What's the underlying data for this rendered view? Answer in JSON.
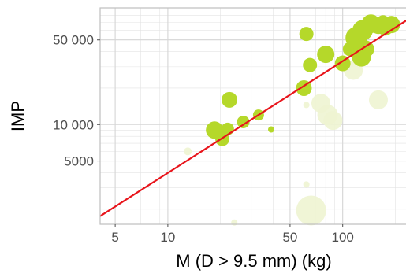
{
  "chart_data": {
    "type": "scatter",
    "title": "",
    "xlabel": "M (D > 9.5 mm) (kg)",
    "ylabel": "IMP",
    "x_scale": "log10",
    "y_scale": "log10",
    "xlim": [
      4.1,
      235
    ],
    "ylim": [
      1500,
      92000
    ],
    "x_ticks": [
      {
        "value": 5,
        "label": "5"
      },
      {
        "value": 10,
        "label": "10"
      },
      {
        "value": 50,
        "label": "50"
      },
      {
        "value": 100,
        "label": "100"
      }
    ],
    "y_ticks": [
      {
        "value": 5000,
        "label": "5000"
      },
      {
        "value": 10000,
        "label": "10 000"
      },
      {
        "value": 50000,
        "label": "50 000"
      }
    ],
    "grid": true,
    "colors": {
      "point_strong": "#b5d82a",
      "point_faint": "#eef4d2",
      "fit_line": "#e8141b",
      "panel_border": "#bfbfbf",
      "grid": "#e3e3e3"
    },
    "fit_line": {
      "x": [
        4.1,
        235
      ],
      "y": [
        1750,
        73500
      ]
    },
    "points": [
      {
        "x": 18.5,
        "y": 9000,
        "size": 11,
        "faded": false
      },
      {
        "x": 20.5,
        "y": 7600,
        "size": 9,
        "faded": false
      },
      {
        "x": 22,
        "y": 9200,
        "size": 8,
        "faded": false
      },
      {
        "x": 22.5,
        "y": 16000,
        "size": 10,
        "faded": false
      },
      {
        "x": 27,
        "y": 10500,
        "size": 8,
        "faded": false
      },
      {
        "x": 33,
        "y": 12000,
        "size": 7,
        "faded": false
      },
      {
        "x": 39,
        "y": 9100,
        "size": 4,
        "faded": false
      },
      {
        "x": 62,
        "y": 56000,
        "size": 9,
        "faded": false
      },
      {
        "x": 65,
        "y": 31000,
        "size": 9,
        "faded": false
      },
      {
        "x": 60,
        "y": 20000,
        "size": 10,
        "faded": false
      },
      {
        "x": 80,
        "y": 38000,
        "size": 11,
        "faded": false
      },
      {
        "x": 100,
        "y": 32000,
        "size": 10,
        "faded": false
      },
      {
        "x": 110,
        "y": 42000,
        "size": 9,
        "faded": false
      },
      {
        "x": 120,
        "y": 52000,
        "size": 14,
        "faded": false
      },
      {
        "x": 128,
        "y": 36000,
        "size": 12,
        "faded": false
      },
      {
        "x": 135,
        "y": 42000,
        "size": 11,
        "faded": false
      },
      {
        "x": 130,
        "y": 60000,
        "size": 13,
        "faded": false
      },
      {
        "x": 145,
        "y": 68000,
        "size": 12,
        "faded": false
      },
      {
        "x": 160,
        "y": 66000,
        "size": 11,
        "faded": false
      },
      {
        "x": 175,
        "y": 63000,
        "size": 10,
        "faded": false
      },
      {
        "x": 190,
        "y": 67000,
        "size": 11,
        "faded": false
      },
      {
        "x": 170,
        "y": 70000,
        "size": 9,
        "faded": false
      },
      {
        "x": 62,
        "y": 14500,
        "size": 4,
        "faded": true
      },
      {
        "x": 75,
        "y": 15000,
        "size": 12,
        "faded": true
      },
      {
        "x": 82,
        "y": 12000,
        "size": 13,
        "faded": true
      },
      {
        "x": 88,
        "y": 10800,
        "size": 12,
        "faded": true
      },
      {
        "x": 66,
        "y": 1950,
        "size": 19,
        "faded": true
      },
      {
        "x": 62,
        "y": 3200,
        "size": 4,
        "faded": true
      },
      {
        "x": 24,
        "y": 1550,
        "size": 4,
        "faded": true
      },
      {
        "x": 160,
        "y": 16000,
        "size": 12,
        "faded": true
      },
      {
        "x": 115,
        "y": 28000,
        "size": 12,
        "faded": true
      },
      {
        "x": 13,
        "y": 6000,
        "size": 5,
        "faded": true
      }
    ]
  }
}
